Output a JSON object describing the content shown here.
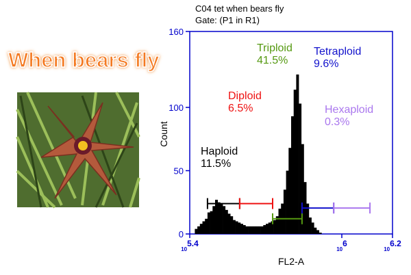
{
  "banner": "When bears fly",
  "chart_data": {
    "type": "histogram",
    "title": "C04 tet when bears fly",
    "subtitle": "Gate: (P1 in R1)",
    "xlabel": "FL2-A",
    "ylabel": "Count",
    "bins": [
      5.42,
      5.43,
      5.44,
      5.45,
      5.46,
      5.47,
      5.48,
      5.49,
      5.5,
      5.51,
      5.52,
      5.53,
      5.54,
      5.55,
      5.56,
      5.57,
      5.58,
      5.59,
      5.6,
      5.61,
      5.62,
      5.63,
      5.64,
      5.65,
      5.66,
      5.67,
      5.68,
      5.69,
      5.7,
      5.71,
      5.72,
      5.73,
      5.74,
      5.75,
      5.76,
      5.77,
      5.78,
      5.79,
      5.8,
      5.81,
      5.82,
      5.83,
      5.84,
      5.85,
      5.86,
      5.87,
      5.88,
      5.89,
      5.9,
      5.91,
      5.92
    ],
    "values": [
      4,
      6,
      8,
      10,
      12,
      17,
      18,
      22,
      27,
      25,
      24,
      22,
      19,
      16,
      14,
      11,
      10,
      9,
      8,
      7,
      6,
      6,
      6,
      6,
      6,
      6,
      6,
      7,
      8,
      9,
      10,
      11,
      14,
      20,
      24,
      35,
      50,
      68,
      93,
      114,
      126,
      103,
      71,
      41,
      24,
      13,
      9,
      5,
      3,
      1
    ],
    "color": "#000000",
    "axis_color": "#0000cc",
    "xlim": [
      5.4,
      6.2
    ],
    "xticks": [
      {
        "value": 5.4,
        "base": "10",
        "label": "5.4"
      },
      {
        "value": 6,
        "base": "10",
        "label": "6"
      },
      {
        "value": 6.2,
        "base": "10",
        "label": "6.2"
      }
    ],
    "ylim": [
      0,
      160
    ],
    "yticks": [
      0,
      50,
      100,
      160
    ],
    "gates": [
      {
        "name": "Haploid",
        "value": 11.5,
        "value_label": "11.5%",
        "color": "#000000",
        "range": [
          5.47,
          5.597
        ],
        "y": 24
      },
      {
        "name": "Diploid",
        "value": 6.5,
        "value_label": "6.5%",
        "color": "#ee1111",
        "range": [
          5.597,
          5.727
        ],
        "y": 24
      },
      {
        "name": "Triploid",
        "value": 41.5,
        "value_label": "41.5%",
        "color": "#559911",
        "range": [
          5.727,
          5.843
        ],
        "y": 12
      },
      {
        "name": "Tetraploid",
        "value": 9.6,
        "value_label": "9.6%",
        "color": "#1111cc",
        "range": [
          5.843,
          5.968
        ],
        "y": 20.5
      },
      {
        "name": "Hexaploid",
        "value": 0.3,
        "value_label": "0.3%",
        "color": "#aa77ee",
        "range": [
          5.968,
          6.111
        ],
        "y": 20.5
      }
    ]
  }
}
